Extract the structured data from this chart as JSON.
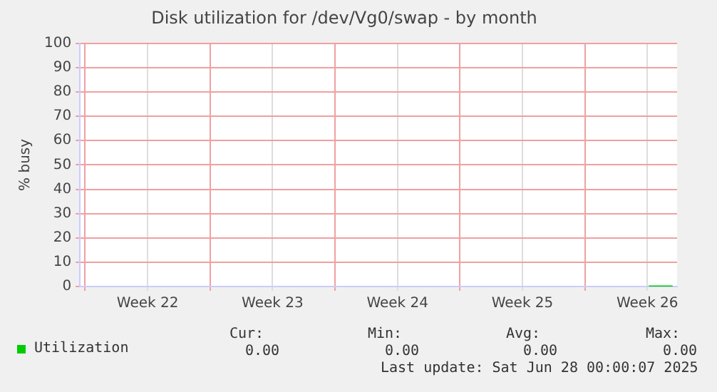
{
  "chart_data": {
    "type": "line",
    "title": "Disk utilization for /dev/Vg0/swap - by month",
    "ylabel": "% busy",
    "series": [
      {
        "name": "Utilization",
        "color": "#00cc00",
        "x": [
          "2025-06-26T14:00",
          "2025-06-27T22:00"
        ],
        "values": [
          0,
          0
        ]
      }
    ],
    "xlim": [
      "2025-05-25T17:00",
      "2025-06-28T04:00"
    ],
    "xticks": [
      {
        "value": "2025-05-26",
        "label": null
      },
      {
        "value": "2025-05-29T12:00",
        "label": "Week 22"
      },
      {
        "value": "2025-06-02",
        "label": null
      },
      {
        "value": "2025-06-05T12:00",
        "label": "Week 23"
      },
      {
        "value": "2025-06-09",
        "label": null
      },
      {
        "value": "2025-06-12T12:00",
        "label": "Week 24"
      },
      {
        "value": "2025-06-16",
        "label": null
      },
      {
        "value": "2025-06-19T12:00",
        "label": "Week 25"
      },
      {
        "value": "2025-06-23",
        "label": null
      },
      {
        "value": "2025-06-26T12:00",
        "label": "Week 26"
      }
    ],
    "ylim": [
      0,
      100
    ],
    "yticks": [
      0,
      10,
      20,
      30,
      40,
      50,
      60,
      70,
      80,
      90,
      100
    ],
    "grid": true,
    "legend": "bottom left",
    "marker": "none",
    "line_style": "solid",
    "annotations": [
      "Cur:",
      "Min:",
      "Avg:",
      "Max:",
      "0.00",
      "0.00",
      "0.00",
      "0.00",
      "Last update: Sat Jun 28 00:00:07 2025"
    ]
  }
}
